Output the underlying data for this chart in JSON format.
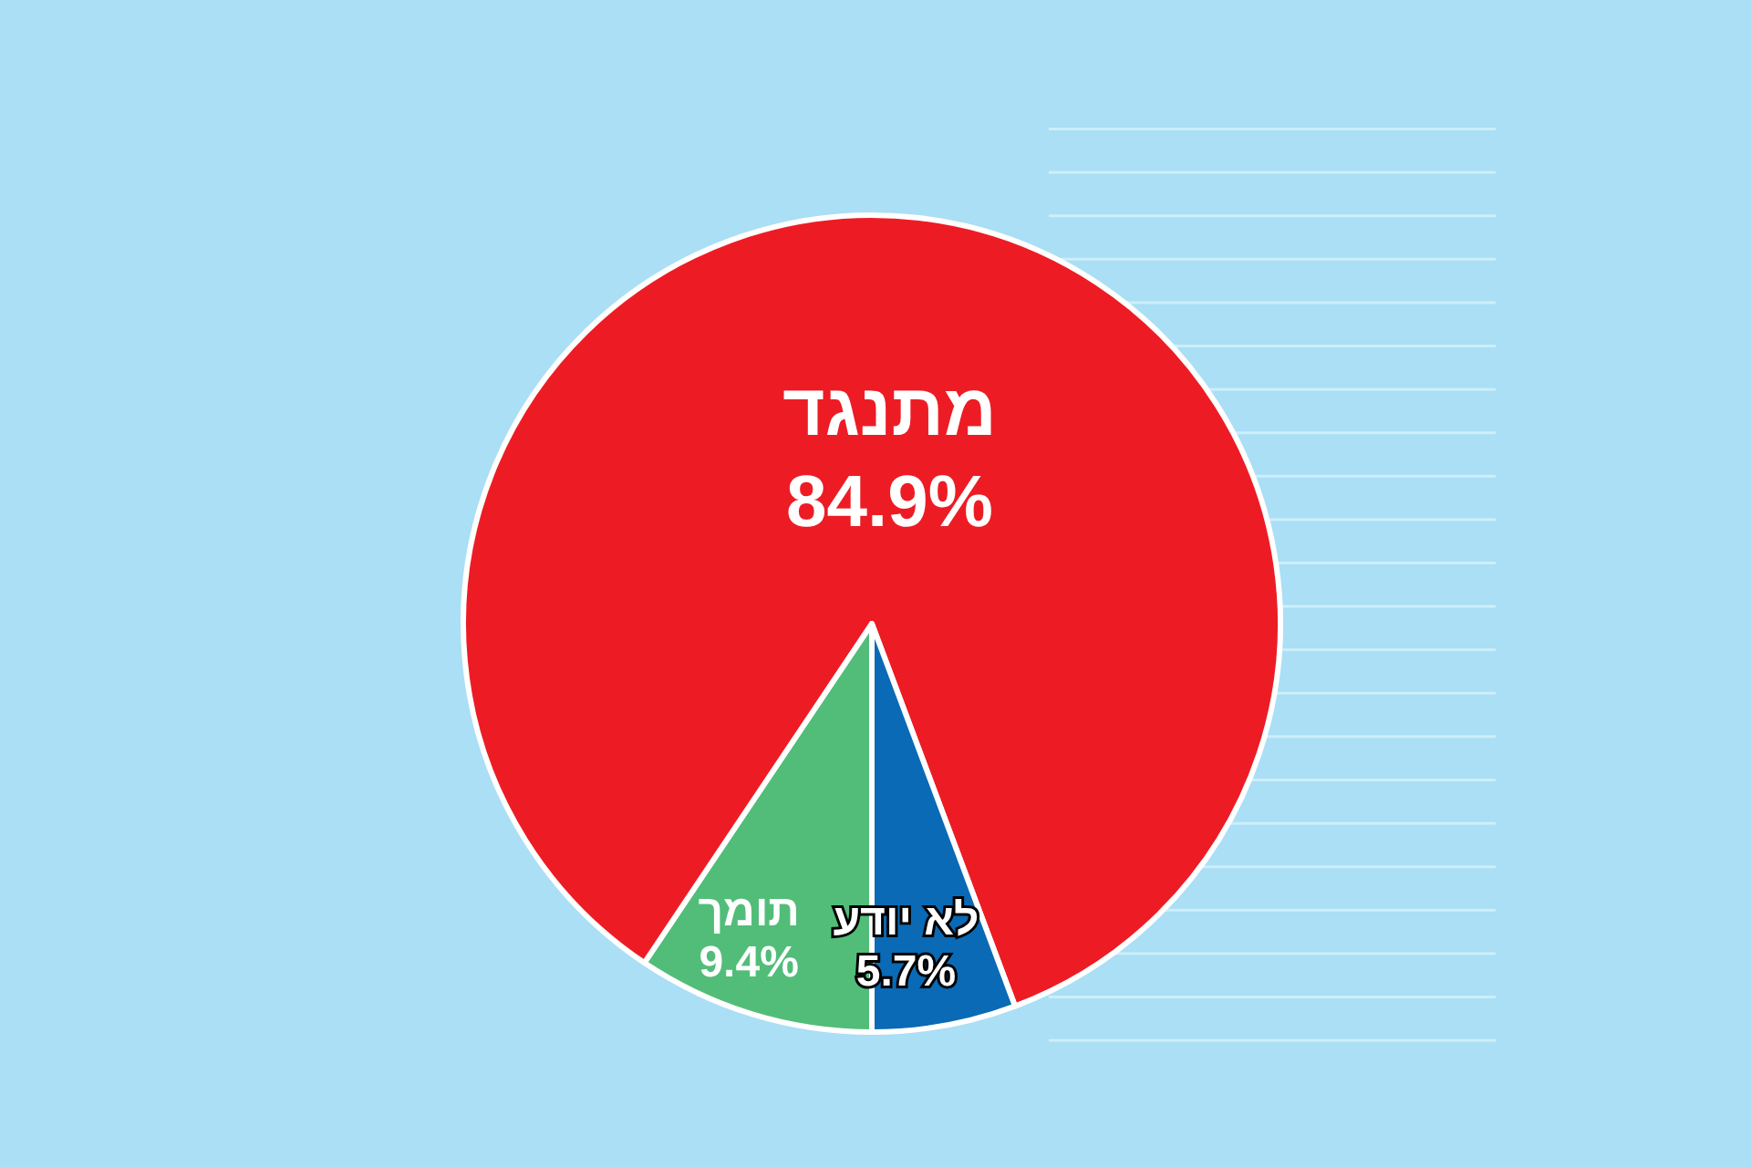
{
  "chart_data": {
    "type": "pie",
    "categories": [
      "תומך",
      "מתנגד",
      "לא יודע"
    ],
    "values": [
      9.4,
      84.9,
      5.7
    ],
    "value_labels": [
      "9.4%",
      "84.9%",
      "5.7%"
    ],
    "colors": [
      "#52bd79",
      "#ed1c24",
      "#0a6ab5"
    ]
  }
}
